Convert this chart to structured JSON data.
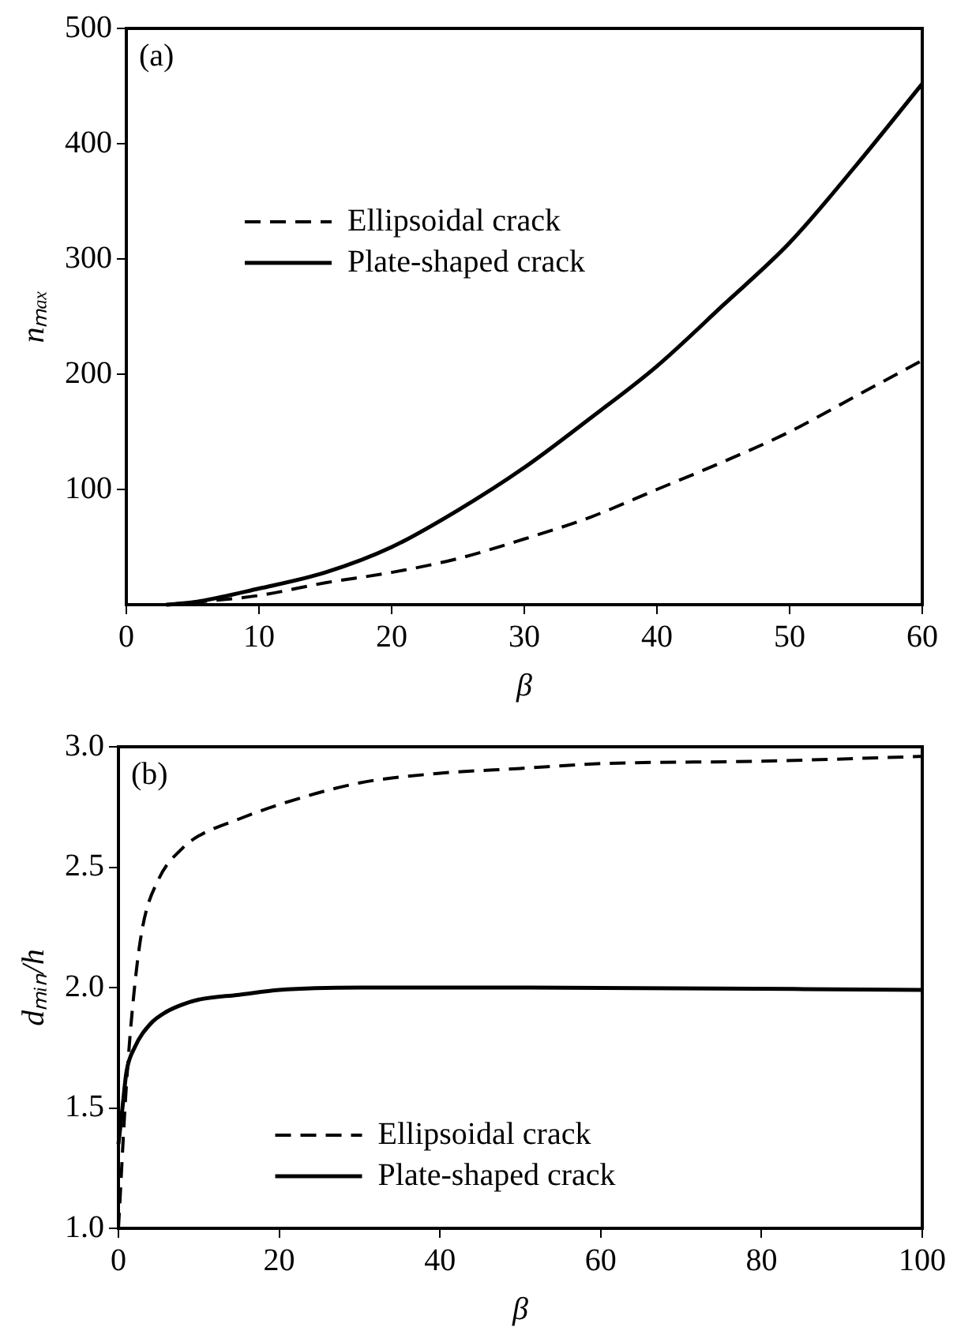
{
  "chart_data": [
    {
      "type": "line",
      "xlabel": "β",
      "ylabel": "nₘₐₓ",
      "annotations": [
        "(a)"
      ],
      "xlim": [
        0,
        60
      ],
      "ylim": [
        0,
        500
      ],
      "xticks": [
        0,
        10,
        20,
        30,
        40,
        50,
        60
      ],
      "yticks": [
        100,
        200,
        300,
        400,
        500
      ],
      "legend": "top left",
      "grid": false,
      "marker": "none",
      "series": [
        {
          "name": "Ellipsoidal crack",
          "color": "#000000",
          "line_style": "dashed",
          "x": [
            3,
            5,
            10,
            15,
            20,
            25,
            30,
            35,
            40,
            45,
            50,
            55,
            60
          ],
          "values": [
            0,
            2,
            8,
            19,
            28,
            40,
            57,
            76,
            100,
            124,
            150,
            181,
            212
          ]
        },
        {
          "name": "Plate-shaped crack",
          "color": "#000000",
          "line_style": "solid",
          "x": [
            3,
            5,
            10,
            15,
            20,
            25,
            30,
            35,
            40,
            45,
            50,
            55,
            60
          ],
          "values": [
            0,
            2,
            14,
            28,
            50,
            82,
            119,
            162,
            207,
            260,
            314,
            381,
            452
          ]
        }
      ]
    },
    {
      "type": "line",
      "xlabel": "β",
      "ylabel": "dₘᵢₙ/h",
      "annotations": [
        "(b)"
      ],
      "xlim": [
        0,
        100
      ],
      "ylim": [
        1.0,
        3.0
      ],
      "xticks": [
        0,
        20,
        40,
        60,
        80,
        100
      ],
      "yticks": [
        {
          "value": 1,
          "label": "1.0"
        },
        {
          "value": 1.5,
          "label": "1.5"
        },
        {
          "value": 2,
          "label": "2.0"
        },
        {
          "value": 2.5,
          "label": "2.5"
        },
        {
          "value": 3,
          "label": "3.0"
        }
      ],
      "legend": "bottom",
      "grid": false,
      "marker": "none",
      "series": [
        {
          "name": "Ellipsoidal crack",
          "color": "#000000",
          "line_style": "dashed",
          "x": [
            0,
            1,
            2,
            3,
            5,
            8,
            10,
            15,
            20,
            30,
            40,
            50,
            60,
            80,
            100
          ],
          "values": [
            1.0,
            1.6,
            2.0,
            2.25,
            2.45,
            2.58,
            2.63,
            2.7,
            2.76,
            2.85,
            2.89,
            2.91,
            2.93,
            2.94,
            2.96
          ]
        },
        {
          "name": "Plate-shaped crack",
          "color": "#000000",
          "line_style": "solid",
          "x": [
            0,
            0.5,
            1,
            2,
            4,
            6,
            8,
            10,
            15,
            20,
            30,
            50,
            100
          ],
          "values": [
            1.35,
            1.5,
            1.65,
            1.75,
            1.85,
            1.9,
            1.93,
            1.95,
            1.97,
            1.99,
            2.0,
            2.0,
            1.99
          ]
        }
      ]
    }
  ]
}
